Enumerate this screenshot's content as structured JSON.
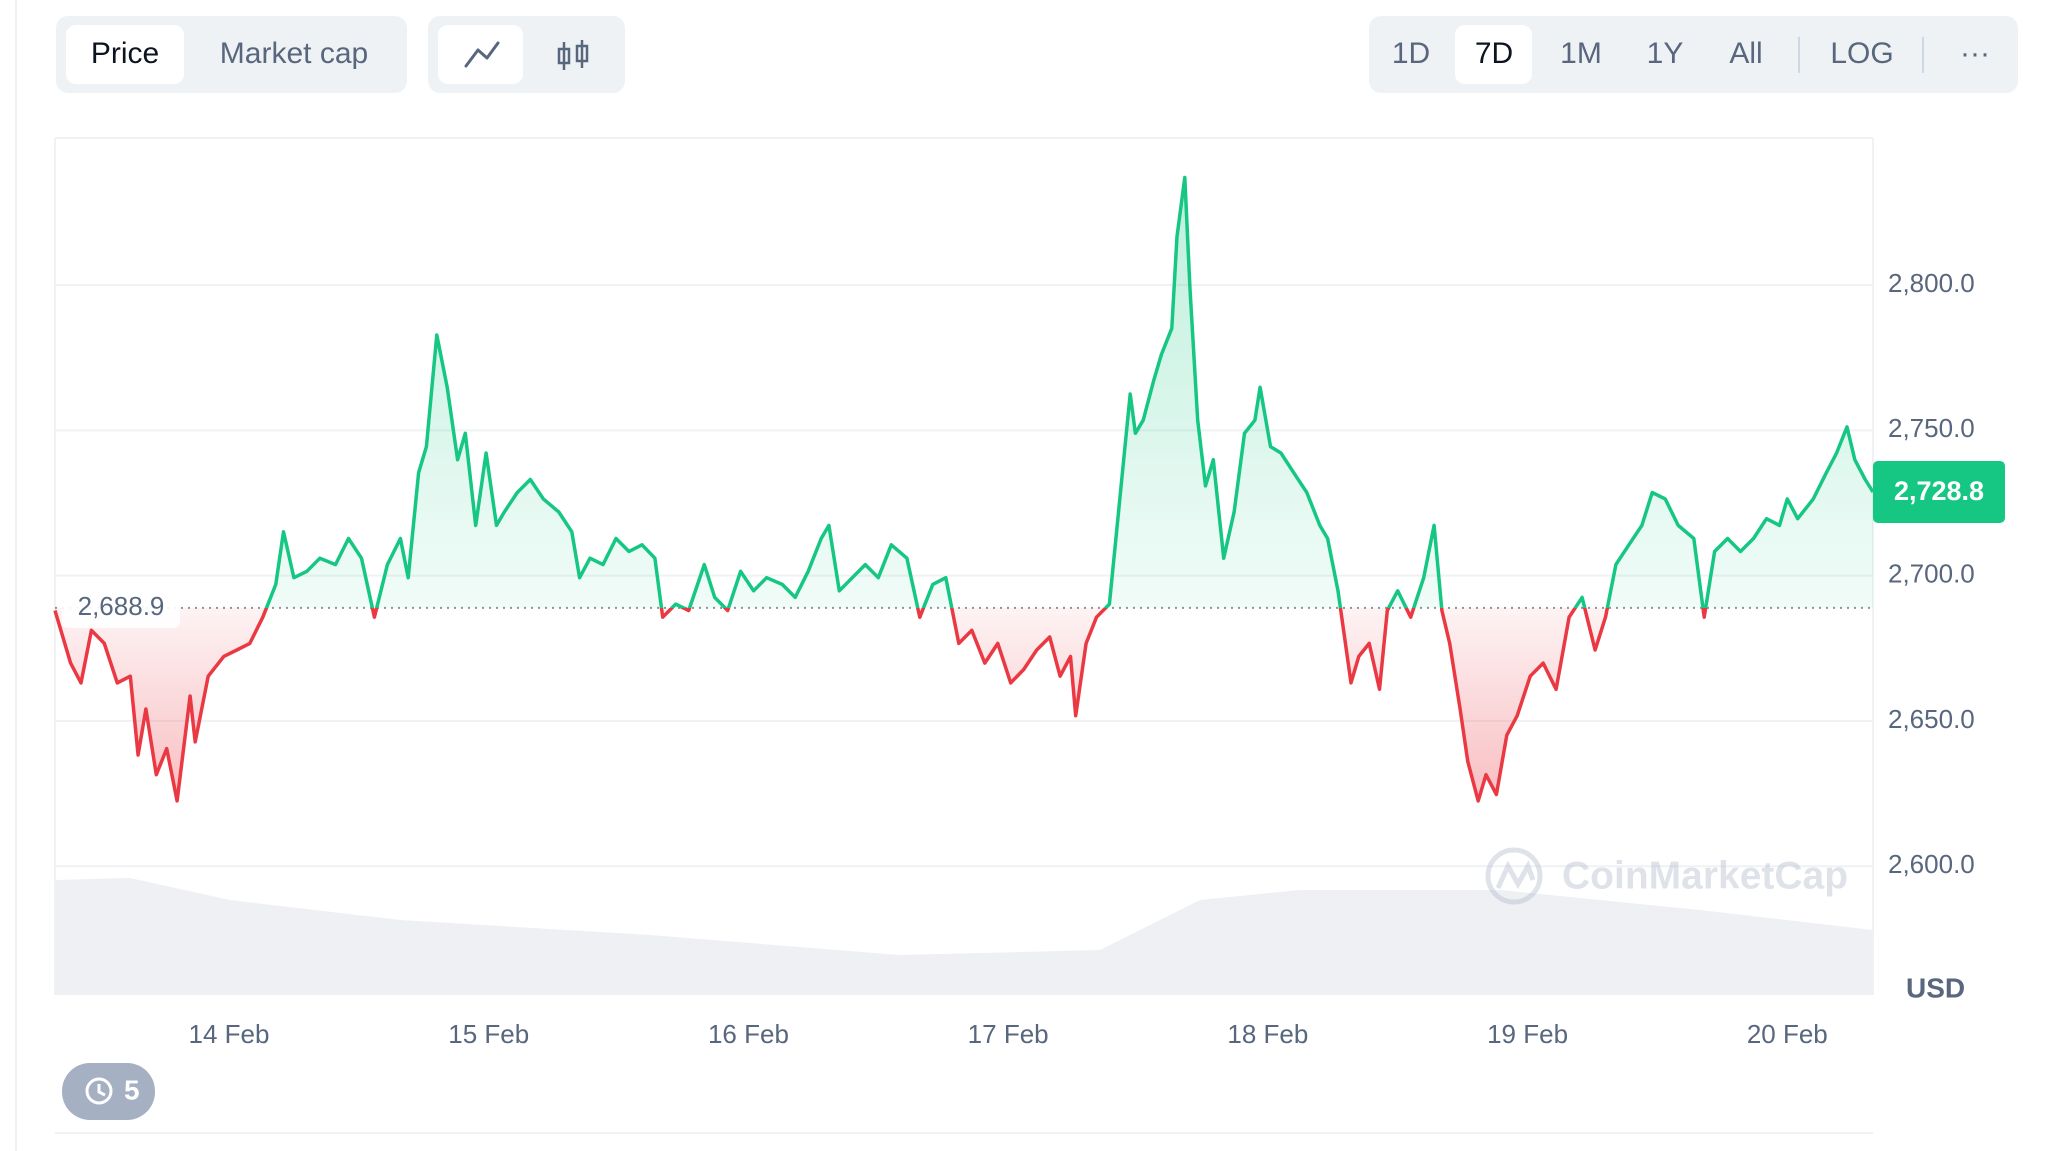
{
  "ui": {
    "metric_tabs": [
      "Price",
      "Market cap"
    ],
    "range_tabs": [
      "1D",
      "7D",
      "1M",
      "1Y",
      "All"
    ],
    "log": "LOG",
    "more": "···",
    "history_count": "5"
  },
  "chart_data": {
    "type": "line",
    "currency": "USD",
    "watermark": "CoinMarketCap",
    "x": [
      13.33,
      13.39,
      13.43,
      13.47,
      13.52,
      13.57,
      13.62,
      13.65,
      13.68,
      13.72,
      13.76,
      13.8,
      13.85,
      13.87,
      13.92,
      13.98,
      14.03,
      14.08,
      14.13,
      14.18,
      14.21,
      14.25,
      14.3,
      14.35,
      14.41,
      14.46,
      14.51,
      14.56,
      14.61,
      14.66,
      14.69,
      14.73,
      14.76,
      14.8,
      14.84,
      14.88,
      14.91,
      14.95,
      14.99,
      15.03,
      15.06,
      15.11,
      15.16,
      15.21,
      15.27,
      15.32,
      15.35,
      15.39,
      15.44,
      15.49,
      15.54,
      15.59,
      15.64,
      15.67,
      15.72,
      15.77,
      15.83,
      15.87,
      15.92,
      15.97,
      16.02,
      16.07,
      16.13,
      16.18,
      16.23,
      16.28,
      16.31,
      16.35,
      16.4,
      16.45,
      16.5,
      16.55,
      16.61,
      16.66,
      16.71,
      16.76,
      16.81,
      16.86,
      16.91,
      16.96,
      17.01,
      17.06,
      17.11,
      17.16,
      17.2,
      17.24,
      17.26,
      17.3,
      17.34,
      17.39,
      17.42,
      17.47,
      17.49,
      17.52,
      17.56,
      17.59,
      17.63,
      17.65,
      17.68,
      17.7,
      17.73,
      17.76,
      17.79,
      17.83,
      17.87,
      17.91,
      17.95,
      17.97,
      18.01,
      18.05,
      18.1,
      18.15,
      18.2,
      18.23,
      18.27,
      18.32,
      18.35,
      18.39,
      18.43,
      18.46,
      18.5,
      18.55,
      18.6,
      18.64,
      18.67,
      18.7,
      18.74,
      18.77,
      18.81,
      18.84,
      18.88,
      18.92,
      18.96,
      19.01,
      19.06,
      19.11,
      19.16,
      19.21,
      19.26,
      19.3,
      19.34,
      19.39,
      19.44,
      19.48,
      19.53,
      19.58,
      19.64,
      19.68,
      19.72,
      19.77,
      19.82,
      19.87,
      19.92,
      19.97,
      20.0,
      20.04,
      20.1,
      20.15,
      20.19,
      20.23,
      20.26,
      20.3,
      20.33
    ],
    "series": [
      {
        "name": "Price",
        "color_up": "#16c784",
        "color_down": "#ea3943",
        "values": [
          2688.0,
          2669.9,
          2663.1,
          2681.2,
          2676.7,
          2663.1,
          2665.4,
          2638.3,
          2654.1,
          2631.5,
          2640.5,
          2622.5,
          2658.6,
          2642.8,
          2665.4,
          2672.2,
          2674.4,
          2676.7,
          2685.7,
          2697.0,
          2715.1,
          2699.3,
          2701.5,
          2706.0,
          2703.8,
          2712.8,
          2706.0,
          2685.7,
          2703.8,
          2712.8,
          2699.3,
          2735.4,
          2744.4,
          2782.8,
          2764.8,
          2739.9,
          2749.0,
          2717.3,
          2742.2,
          2717.3,
          2721.9,
          2728.6,
          2733.1,
          2726.4,
          2721.9,
          2715.1,
          2699.3,
          2706.0,
          2703.8,
          2712.8,
          2708.3,
          2710.6,
          2706.0,
          2685.7,
          2690.2,
          2688.0,
          2703.8,
          2692.5,
          2688.0,
          2701.5,
          2694.8,
          2699.3,
          2697.0,
          2692.5,
          2701.5,
          2712.8,
          2717.3,
          2694.8,
          2699.3,
          2703.8,
          2699.3,
          2710.6,
          2706.0,
          2685.7,
          2697.0,
          2699.3,
          2676.7,
          2681.2,
          2669.9,
          2676.7,
          2663.1,
          2667.7,
          2674.4,
          2678.9,
          2665.4,
          2672.2,
          2651.8,
          2676.7,
          2685.7,
          2690.2,
          2717.3,
          2762.5,
          2749.0,
          2753.5,
          2767.0,
          2776.1,
          2785.1,
          2816.7,
          2837.0,
          2798.6,
          2753.5,
          2730.9,
          2739.9,
          2706.0,
          2721.9,
          2749.0,
          2753.5,
          2764.8,
          2744.4,
          2742.2,
          2735.4,
          2728.6,
          2717.3,
          2712.8,
          2694.8,
          2663.1,
          2672.2,
          2676.7,
          2660.9,
          2688.0,
          2694.8,
          2685.7,
          2699.3,
          2717.3,
          2688.0,
          2676.7,
          2654.1,
          2636.0,
          2622.5,
          2631.5,
          2624.7,
          2645.1,
          2651.8,
          2665.4,
          2669.9,
          2660.9,
          2685.7,
          2692.5,
          2674.4,
          2685.7,
          2703.8,
          2710.6,
          2717.3,
          2728.6,
          2726.4,
          2717.3,
          2712.8,
          2685.7,
          2708.3,
          2712.8,
          2708.3,
          2712.8,
          2719.6,
          2717.3,
          2726.4,
          2719.6,
          2726.4,
          2735.4,
          2742.2,
          2751.2,
          2739.9,
          2733.1,
          2728.8
        ]
      }
    ],
    "baseline": {
      "value": 2688.9,
      "label": "2,688.9"
    },
    "current_price": {
      "value": 2728.8,
      "label": "2,728.8"
    },
    "xlim": [
      13.33,
      20.33
    ],
    "xticks": [
      {
        "value": 14,
        "label": "14 Feb"
      },
      {
        "value": 15,
        "label": "15 Feb"
      },
      {
        "value": 16,
        "label": "16 Feb"
      },
      {
        "value": 17,
        "label": "17 Feb"
      },
      {
        "value": 18,
        "label": "18 Feb"
      },
      {
        "value": 19,
        "label": "19 Feb"
      },
      {
        "value": 20,
        "label": "20 Feb"
      }
    ],
    "ylim": [
      2555.7,
      2850.6
    ],
    "yticks": [
      {
        "value": 2600,
        "label": "2,600.0"
      },
      {
        "value": 2650,
        "label": "2,650.0"
      },
      {
        "value": 2700,
        "label": "2,700.0"
      },
      {
        "value": 2750,
        "label": "2,750.0"
      },
      {
        "value": 2800,
        "label": "2,800.0"
      }
    ],
    "grid": true
  }
}
